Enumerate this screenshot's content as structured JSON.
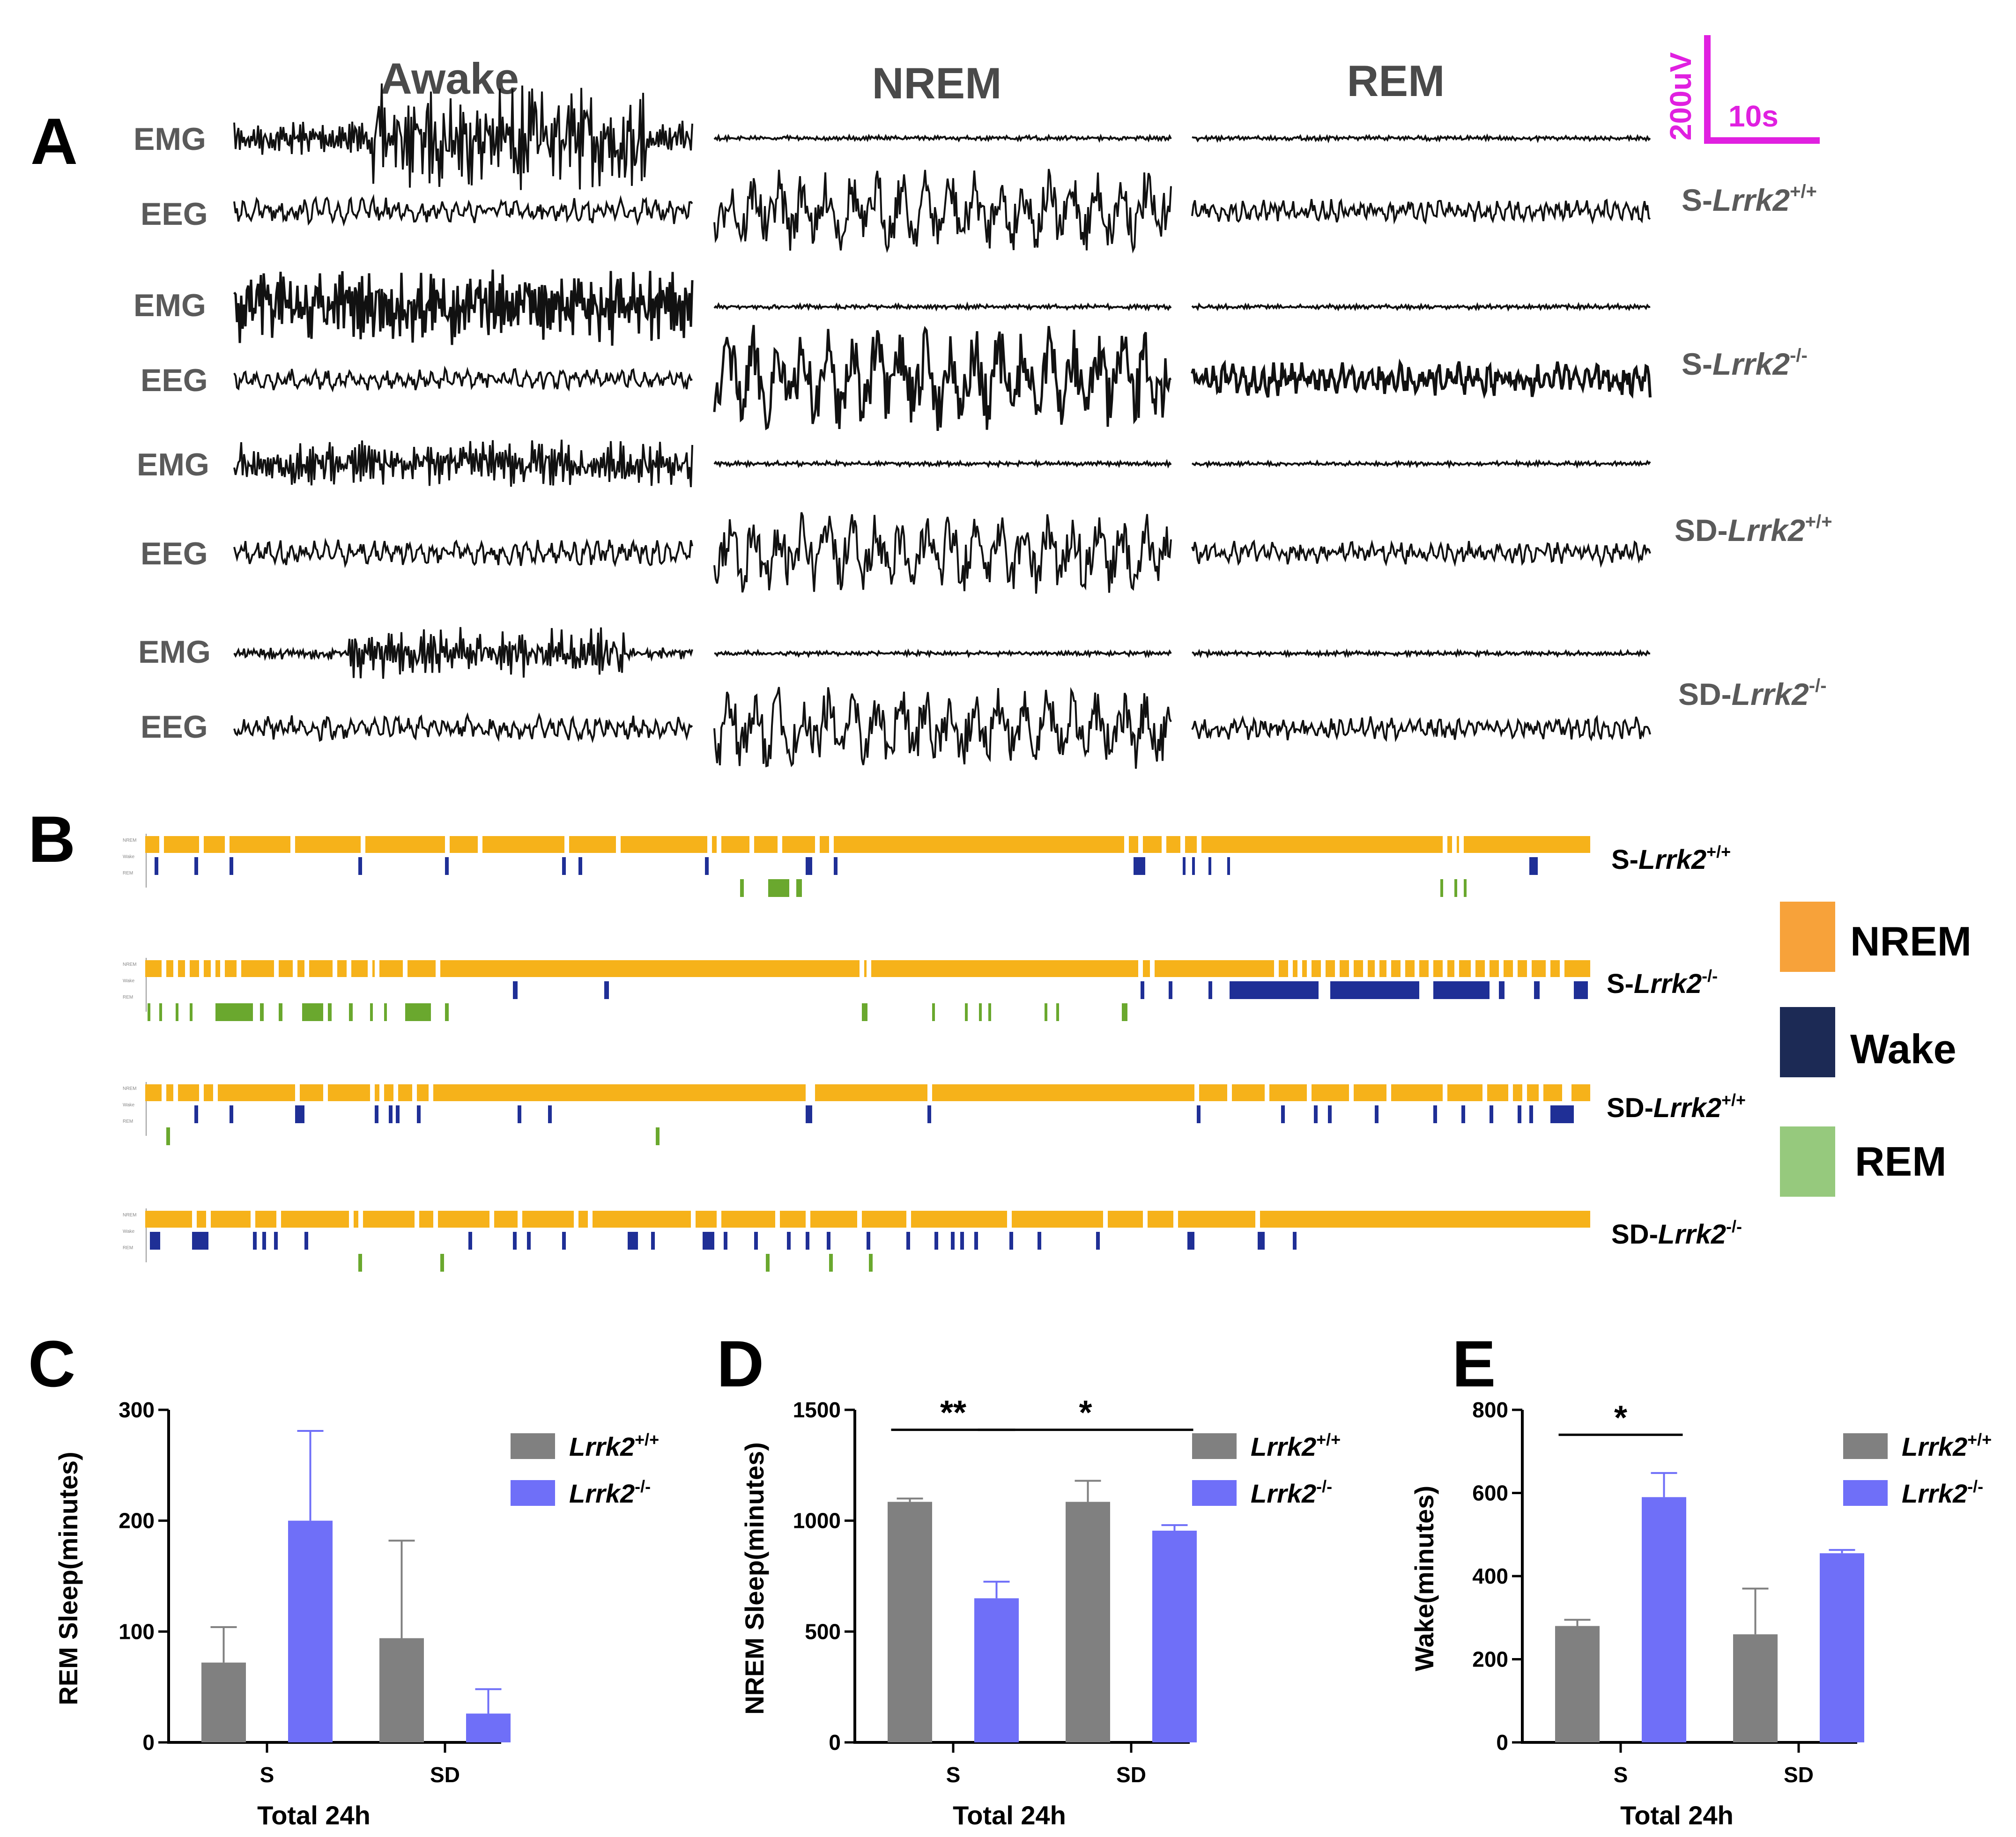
{
  "panel_a": {
    "label": "A",
    "states": [
      "Awake",
      "NREM",
      "REM"
    ],
    "signal_labels": [
      "EMG",
      "EEG"
    ],
    "scale_bar": {
      "amplitude": "200uV",
      "time": "10s",
      "color": "#e020e0"
    },
    "rows": [
      {
        "emg": "EMG",
        "eeg": "EEG",
        "group": "S-",
        "gene": "Lrrk2",
        "sup": "+/+"
      },
      {
        "emg": "EMG",
        "eeg": "EEG",
        "group": "S-",
        "gene": "Lrrk2",
        "sup": "-/-"
      },
      {
        "emg": "EMG",
        "eeg": "EEG",
        "group": "SD-",
        "gene": "Lrrk2",
        "sup": "+/+"
      },
      {
        "emg": "EMG",
        "eeg": "EEG",
        "group": "SD-",
        "gene": "Lrrk2",
        "sup": "-/-"
      }
    ]
  },
  "panel_b": {
    "label": "B",
    "hypnogram_track_labels": [
      "NREM",
      "Wake",
      "REM"
    ],
    "rows": [
      {
        "group": "S-",
        "gene": "Lrrk2",
        "sup": "+/+"
      },
      {
        "group": "S-",
        "gene": "Lrrk2",
        "sup": "-/-"
      },
      {
        "group": "SD-",
        "gene": "Lrrk2",
        "sup": "+/+"
      },
      {
        "group": "SD-",
        "gene": "Lrrk2",
        "sup": "-/-"
      }
    ],
    "legend": [
      {
        "label": "NREM",
        "color": "#f7a23a"
      },
      {
        "label": "Wake",
        "color": "#1c2a55"
      },
      {
        "label": "REM",
        "color": "#96c97d"
      }
    ],
    "colors": {
      "nrem": "#f6b21a",
      "wake": "#1f2f96",
      "rem": "#6aa82e"
    }
  },
  "chart_data": [
    {
      "panel": "C",
      "type": "bar",
      "title": "",
      "xlabel": "Total 24h",
      "ylabel": "REM Sleep(minutes)",
      "categories": [
        "S",
        "SD"
      ],
      "ylim": [
        0,
        300
      ],
      "yticks": [
        0,
        100,
        200,
        300
      ],
      "series": [
        {
          "name": "Lrrk2",
          "sup": "+/+",
          "color": "#808080",
          "values": [
            72,
            94
          ],
          "errors": [
            32,
            88
          ]
        },
        {
          "name": "Lrrk2",
          "sup": "-/-",
          "color": "#6f6ff8",
          "values": [
            200,
            26
          ],
          "errors": [
            81,
            22
          ]
        }
      ],
      "significance": []
    },
    {
      "panel": "D",
      "type": "bar",
      "title": "",
      "xlabel": "Total 24h",
      "ylabel": "NREM Sleep(minutes)",
      "categories": [
        "S",
        "SD"
      ],
      "ylim": [
        0,
        1500
      ],
      "yticks": [
        0,
        500,
        1000,
        1500
      ],
      "series": [
        {
          "name": "Lrrk2",
          "sup": "+/+",
          "color": "#808080",
          "values": [
            1085,
            1085
          ],
          "errors": [
            15,
            95
          ]
        },
        {
          "name": "Lrrk2",
          "sup": "-/-",
          "color": "#6f6ff8",
          "values": [
            650,
            955
          ],
          "errors": [
            75,
            25
          ]
        }
      ],
      "significance": [
        {
          "label": "**",
          "from": [
            0,
            0
          ],
          "to": [
            0,
            1
          ],
          "y": 1410
        },
        {
          "label": "*",
          "from": [
            0,
            1
          ],
          "to": [
            1,
            1
          ],
          "y": 1410
        }
      ]
    },
    {
      "panel": "E",
      "type": "bar",
      "title": "",
      "xlabel": "Total 24h",
      "ylabel": "Wake(minutes)",
      "categories": [
        "S",
        "SD"
      ],
      "ylim": [
        0,
        800
      ],
      "yticks": [
        0,
        200,
        400,
        600,
        800
      ],
      "series": [
        {
          "name": "Lrrk2",
          "sup": "+/+",
          "color": "#808080",
          "values": [
            280,
            260
          ],
          "errors": [
            15,
            110
          ]
        },
        {
          "name": "Lrrk2",
          "sup": "-/-",
          "color": "#6f6ff8",
          "values": [
            590,
            455
          ],
          "errors": [
            58,
            8
          ]
        }
      ],
      "significance": [
        {
          "label": "*",
          "from": [
            0,
            0
          ],
          "to": [
            0,
            1
          ],
          "y": 740
        }
      ]
    }
  ]
}
